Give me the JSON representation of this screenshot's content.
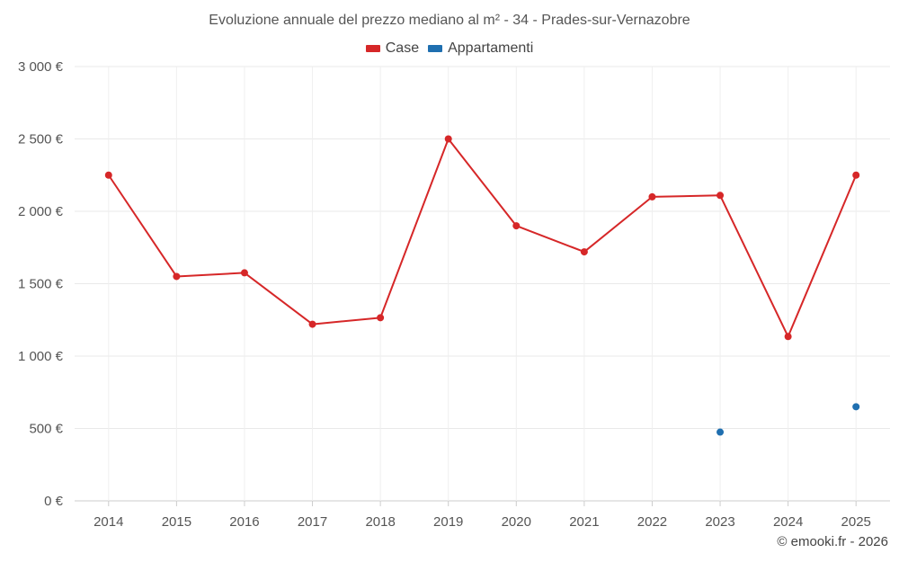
{
  "chart_data": {
    "type": "line",
    "title": "Evoluzione annuale del prezzo mediano al m² - 34 - Prades-sur-Vernazobre",
    "categories": [
      "2014",
      "2015",
      "2016",
      "2017",
      "2018",
      "2019",
      "2020",
      "2021",
      "2022",
      "2023",
      "2024",
      "2025"
    ],
    "series": [
      {
        "name": "Case",
        "color": "#d62728",
        "values": [
          2250,
          1550,
          1575,
          1220,
          1265,
          2500,
          1900,
          1720,
          2100,
          2110,
          1135,
          2250
        ]
      },
      {
        "name": "Appartamenti",
        "color": "#1f6fb0",
        "values": [
          null,
          null,
          null,
          null,
          null,
          null,
          null,
          null,
          null,
          475,
          null,
          650
        ]
      }
    ],
    "ylim": [
      0,
      3000
    ],
    "yticks": [
      0,
      500,
      1000,
      1500,
      2000,
      2500,
      3000
    ],
    "ytick_labels": [
      "0 €",
      "500 €",
      "1 000 €",
      "1 500 €",
      "2 000 €",
      "2 500 €",
      "3 000 €"
    ],
    "xlabel": "",
    "ylabel": "",
    "legend_position": "top-center",
    "grid": true
  },
  "credit": "© emooki.fr - 2026"
}
